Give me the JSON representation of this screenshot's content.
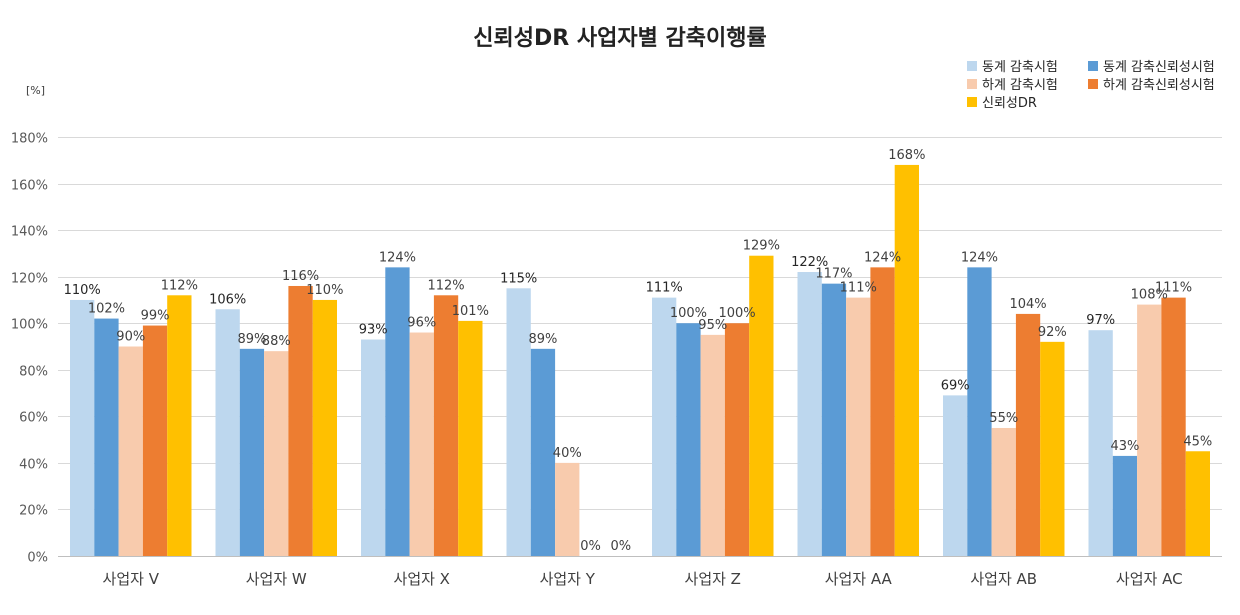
{
  "chart_data": {
    "type": "bar",
    "title": "신뢰성DR 사업자별 감축이행률",
    "ylabel": "[%]",
    "xlabel": "",
    "ylim": [
      0,
      180
    ],
    "ytick_step": 20,
    "ytick_labels": [
      "0%",
      "20%",
      "40%",
      "60%",
      "80%",
      "100%",
      "120%",
      "140%",
      "160%",
      "180%"
    ],
    "grid": true,
    "legend_position": "top-right",
    "categories": [
      "사업자 V",
      "사업자 W",
      "사업자 X",
      "사업자 Y",
      "사업자 Z",
      "사업자 AA",
      "사업자 AB",
      "사업자 AC"
    ],
    "series": [
      {
        "name": "동계 감축시험",
        "color": "#bdd7ee",
        "values": [
          110,
          106,
          93,
          115,
          111,
          122,
          69,
          97
        ],
        "labels": [
          "110%",
          "106%",
          "93%",
          "115%",
          "111%",
          "122%",
          "69%",
          "97%"
        ]
      },
      {
        "name": "동계 감축신뢰성시험",
        "color": "#5b9bd5",
        "values": [
          102,
          89,
          124,
          89,
          100,
          117,
          124,
          43
        ],
        "labels": [
          "102%",
          "89%",
          "124%",
          "89%",
          "100%",
          "117%",
          "124%",
          "43%"
        ]
      },
      {
        "name": "하계 감축시험",
        "color": "#f8cbad",
        "values": [
          90,
          88,
          96,
          40,
          95,
          111,
          55,
          108
        ],
        "labels": [
          "90%",
          "88%",
          "96%",
          "40%",
          "95%",
          "111%",
          "55%",
          "108%"
        ]
      },
      {
        "name": "하계 감축신뢰성시험",
        "color": "#ed7d31",
        "values": [
          99,
          116,
          112,
          0,
          100,
          124,
          104,
          111
        ],
        "labels": [
          "99%",
          "116%",
          "112%",
          "0%",
          "100%",
          "124%",
          "104%",
          "111%"
        ]
      },
      {
        "name": "신뢰성DR",
        "color": "#ffc000",
        "values": [
          112,
          110,
          101,
          0,
          129,
          168,
          92,
          45
        ],
        "labels": [
          "112%",
          "110%",
          "101%",
          "0%",
          "129%",
          "168%",
          "92%",
          "45%"
        ]
      }
    ]
  }
}
